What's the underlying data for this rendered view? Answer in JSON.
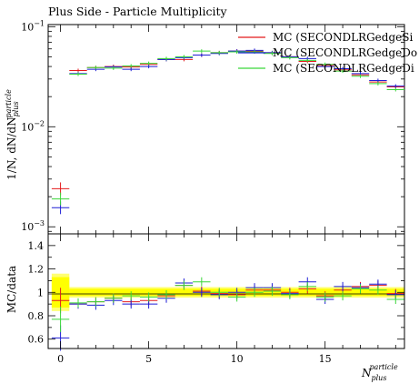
{
  "title": "Plus Side - Particle Multiplicity",
  "colors": {
    "red": "#e41a1c",
    "blue": "#1f1fd6",
    "green": "#3ad63a",
    "band": "#ffff00"
  },
  "chart_data": [
    {
      "type": "line",
      "title": "Plus Side - Particle Multiplicity",
      "ylabel_parts": {
        "main": "1/N, dN/dN",
        "sup": "particle",
        "sub": "plus"
      },
      "yscale": "log",
      "ylim": [
        0.00085,
        0.105
      ],
      "xlim": [
        -0.7,
        19.5
      ],
      "y_tick_labels": [
        {
          "value": 0.001,
          "base": "10",
          "exp": "−3"
        },
        {
          "value": 0.01,
          "base": "10",
          "exp": "−2"
        },
        {
          "value": 0.1,
          "base": "10",
          "exp": "−1"
        }
      ],
      "legend_position": "top-right",
      "series": [
        {
          "name": "MC (SECONDLRGedgeSi",
          "color": "#e41a1c",
          "x": [
            0,
            1,
            2,
            3,
            4,
            5,
            6,
            7,
            8,
            9,
            10,
            11,
            12,
            13,
            14,
            15,
            16,
            17,
            18,
            19
          ],
          "y": [
            0.0024,
            0.0365,
            0.039,
            0.04,
            0.0395,
            0.042,
            0.047,
            0.047,
            0.052,
            0.055,
            0.057,
            0.057,
            0.055,
            0.05,
            0.045,
            0.041,
            0.037,
            0.033,
            0.028,
            0.025
          ]
        },
        {
          "name": "MC (SECONDLRGedgeDo",
          "color": "#1f1fd6",
          "x": [
            0,
            1,
            2,
            3,
            4,
            5,
            6,
            7,
            8,
            9,
            10,
            11,
            12,
            13,
            14,
            15,
            16,
            17,
            18,
            19
          ],
          "y": [
            0.00155,
            0.034,
            0.0375,
            0.0395,
            0.0375,
            0.04,
            0.047,
            0.049,
            0.052,
            0.054,
            0.057,
            0.058,
            0.055,
            0.05,
            0.048,
            0.04,
            0.038,
            0.034,
            0.029,
            0.0255
          ]
        },
        {
          "name": "MC (SECONDLRGedgeDi",
          "color": "#3ad63a",
          "x": [
            0,
            1,
            2,
            3,
            4,
            5,
            6,
            7,
            8,
            9,
            10,
            11,
            12,
            13,
            14,
            15,
            16,
            17,
            18,
            19
          ],
          "y": [
            0.0019,
            0.0335,
            0.039,
            0.0385,
            0.0405,
            0.043,
            0.048,
            0.05,
            0.057,
            0.055,
            0.056,
            0.056,
            0.054,
            0.049,
            0.046,
            0.042,
            0.036,
            0.032,
            0.027,
            0.0235
          ]
        }
      ]
    },
    {
      "type": "line",
      "ylabel": "MC/data",
      "xlabel_parts": {
        "main": "N",
        "sup": "particle",
        "sub": "plus"
      },
      "ylim": [
        0.52,
        1.5
      ],
      "xlim": [
        -0.7,
        19.5
      ],
      "y_tick_labels": [
        "0.6",
        "0.8",
        "1",
        "1.2",
        "1.4"
      ],
      "y_tick_values": [
        0.6,
        0.8,
        1.0,
        1.2,
        1.4
      ],
      "x_tick_labels": [
        "0",
        "5",
        "10",
        "15"
      ],
      "x_tick_values": [
        0,
        5,
        10,
        15
      ],
      "band_inner": [
        {
          "x": [
            -0.5,
            0.5
          ],
          "lo": 0.87,
          "hi": 1.13
        },
        {
          "x": [
            0.5,
            19.5
          ],
          "lo": 0.97,
          "hi": 1.03
        }
      ],
      "band_outer": [
        {
          "x": [
            -0.5,
            0.5
          ],
          "lo": 0.84,
          "hi": 1.16
        },
        {
          "x": [
            0.5,
            19.5
          ],
          "lo": 0.955,
          "hi": 1.045
        }
      ],
      "series": [
        {
          "name": "MC (SECONDLRGedgeSi",
          "color": "#e41a1c",
          "x": [
            0,
            1,
            2,
            3,
            4,
            5,
            6,
            7,
            8,
            9,
            10,
            11,
            12,
            13,
            14,
            15,
            16,
            17,
            18,
            19
          ],
          "y": [
            0.93,
            0.9,
            0.92,
            0.95,
            0.92,
            0.93,
            0.97,
            1.06,
            1.01,
            0.99,
            0.98,
            1.02,
            1.02,
            1.0,
            1.03,
            0.97,
            1.02,
            1.05,
            1.06,
            0.99
          ]
        },
        {
          "name": "MC (SECONDLRGedgeDo",
          "color": "#1f1fd6",
          "x": [
            0,
            1,
            2,
            3,
            4,
            5,
            6,
            7,
            8,
            9,
            10,
            11,
            12,
            13,
            14,
            15,
            16,
            17,
            18,
            19
          ],
          "y": [
            0.61,
            0.9,
            0.89,
            0.93,
            0.9,
            0.9,
            0.95,
            1.08,
            1.0,
            0.98,
            1.0,
            1.04,
            1.04,
            0.99,
            1.09,
            0.94,
            1.05,
            1.04,
            1.07,
            0.98
          ]
        },
        {
          "name": "MC (SECONDLRGedgeDi",
          "color": "#3ad63a",
          "x": [
            0,
            1,
            2,
            3,
            4,
            5,
            6,
            7,
            8,
            9,
            10,
            11,
            12,
            13,
            14,
            15,
            16,
            17,
            18,
            19
          ],
          "y": [
            0.77,
            0.91,
            0.92,
            0.95,
            0.97,
            0.96,
            0.98,
            1.06,
            1.09,
            1.0,
            0.96,
            1.0,
            1.01,
            0.98,
            1.05,
            0.96,
            0.97,
            1.03,
            1.02,
            0.94
          ]
        }
      ]
    }
  ]
}
